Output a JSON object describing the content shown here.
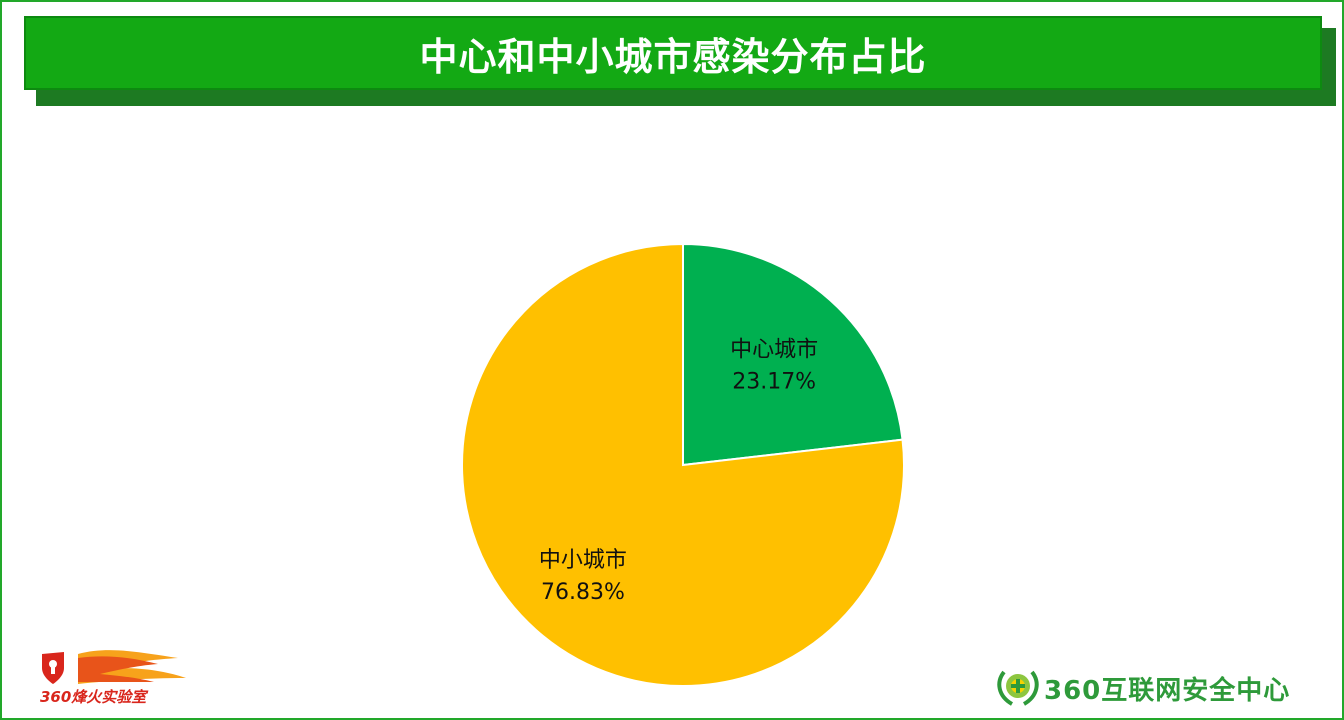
{
  "header": {
    "title": "中心和中小城市感染分布占比"
  },
  "chart_data": {
    "type": "pie",
    "title": "中心和中小城市感染分布占比",
    "slices": [
      {
        "label": "中心城市",
        "value": 23.17,
        "display": "23.17%",
        "color": "#00b050"
      },
      {
        "label": "中小城市",
        "value": 76.83,
        "display": "76.83%",
        "color": "#ffc000"
      }
    ],
    "start": "12 o'clock",
    "direction": "clockwise",
    "legend": "none"
  },
  "logos": {
    "left": {
      "text": "360烽火实验室",
      "color": "#d9261c"
    },
    "right": {
      "text": "360互联网安全中心",
      "color": "#2e9a3a"
    }
  }
}
